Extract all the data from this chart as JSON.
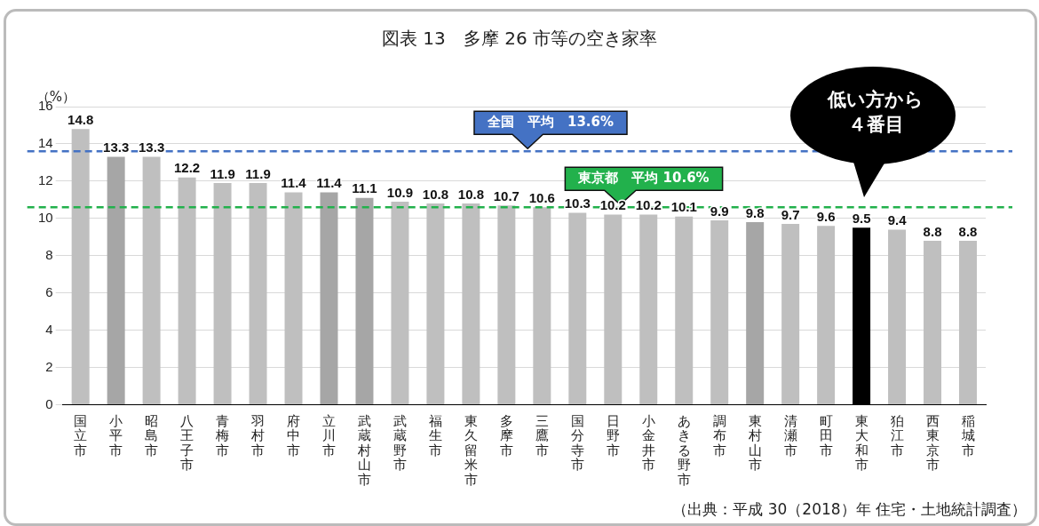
{
  "chart_data": {
    "type": "bar",
    "title": "図表 13　多摩 26 市等の空き家率",
    "ylabel": "（%）",
    "categories": [
      "国立市",
      "小平市",
      "昭島市",
      "八王子市",
      "青梅市",
      "羽村市",
      "府中市",
      "立川市",
      "武蔵村山市",
      "武蔵野市",
      "福生市",
      "東久留米市",
      "多摩市",
      "三鷹市",
      "国分寺市",
      "日野市",
      "小金井市",
      "あきる野市",
      "調布市",
      "東村山市",
      "清瀬市",
      "町田市",
      "東大和市",
      "狛江市",
      "西東京市",
      "稲城市"
    ],
    "values": [
      14.8,
      13.3,
      13.3,
      12.2,
      11.9,
      11.9,
      11.4,
      11.4,
      11.1,
      10.9,
      10.8,
      10.8,
      10.7,
      10.6,
      10.3,
      10.2,
      10.2,
      10.1,
      9.9,
      9.8,
      9.7,
      9.6,
      9.5,
      9.4,
      8.8,
      8.8
    ],
    "colors": [
      "#bfbfbf",
      "#a6a6a6",
      "#bfbfbf",
      "#bfbfbf",
      "#bfbfbf",
      "#bfbfbf",
      "#bfbfbf",
      "#a6a6a6",
      "#a6a6a6",
      "#bfbfbf",
      "#bfbfbf",
      "#bfbfbf",
      "#bfbfbf",
      "#bfbfbf",
      "#bfbfbf",
      "#bfbfbf",
      "#bfbfbf",
      "#bfbfbf",
      "#bfbfbf",
      "#a6a6a6",
      "#bfbfbf",
      "#bfbfbf",
      "#000000",
      "#bfbfbf",
      "#bfbfbf",
      "#bfbfbf"
    ],
    "ylim": [
      0,
      16
    ],
    "yticks": [
      0,
      2,
      4,
      6,
      8,
      10,
      12,
      14,
      16
    ],
    "grid": "y",
    "legend": false,
    "data_labels": true,
    "ref_lines": [
      {
        "axis": "y",
        "value": 13.6,
        "label": "全国　平均　13.6%",
        "color": "#4472c4",
        "line_style": "dashed"
      },
      {
        "axis": "y",
        "value": 10.6,
        "label": "東京都　平均 10.6%",
        "color": "#22b14c",
        "line_style": "dashed"
      }
    ],
    "annotations": [
      "低い方から４番目",
      "（出典：平成 30（2018）年 住宅・土地統計調査）"
    ]
  }
}
